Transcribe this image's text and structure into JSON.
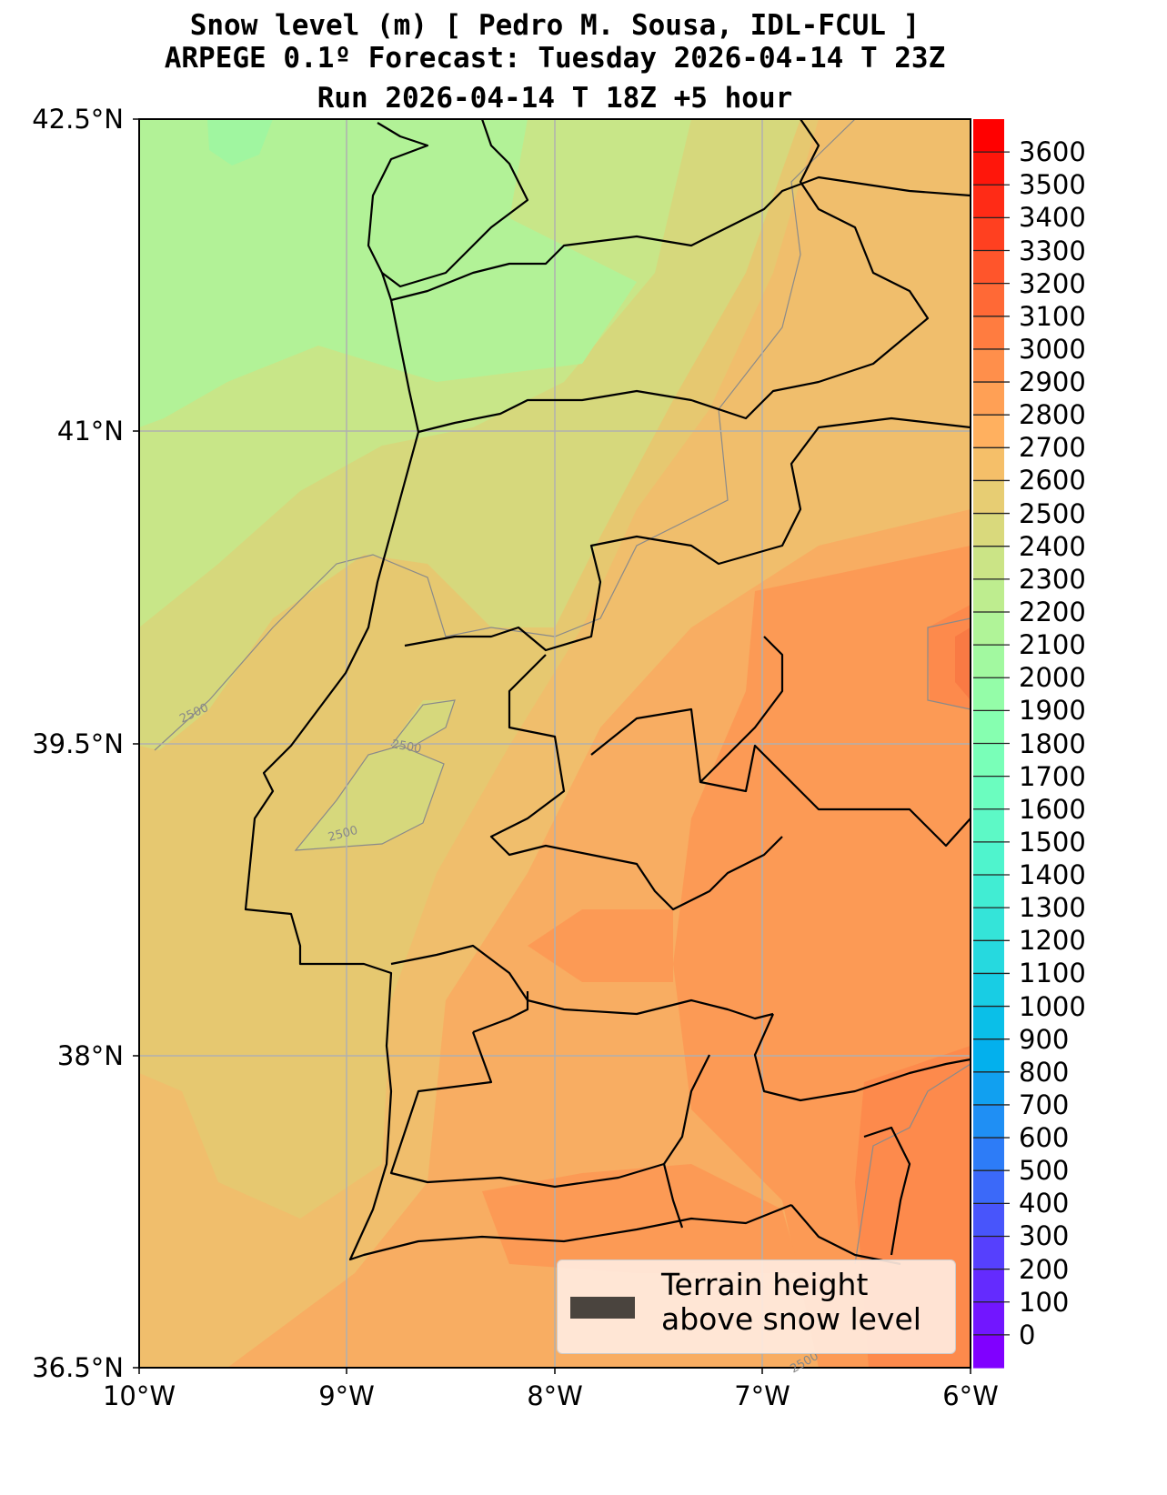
{
  "title": {
    "line1": "Snow level (m) [ Pedro M. Sousa, IDL-FCUL ]",
    "line2": "ARPEGE 0.1º Forecast: Tuesday 2026-04-14 T 23Z",
    "line3": "Run 2026-04-14 T 18Z +5 hour"
  },
  "axes": {
    "lat_labels": [
      "42.5°N",
      "41°N",
      "39.5°N",
      "38°N",
      "36.5°N"
    ],
    "lon_labels": [
      "10°W",
      "9°W",
      "8°W",
      "7°W",
      "6°W"
    ]
  },
  "contour_labels": [
    "2500",
    "2500",
    "2500",
    "2500"
  ],
  "legend": {
    "line1": "Terrain height",
    "line2": "above snow level",
    "swatch_color": "#4a443e"
  },
  "colorbar": {
    "min": -100,
    "max": 3700,
    "step": 100,
    "colormap": "rainbow",
    "tick_labels": [
      "0",
      "100",
      "200",
      "300",
      "400",
      "500",
      "600",
      "700",
      "800",
      "900",
      "1000",
      "1100",
      "1200",
      "1300",
      "1400",
      "1500",
      "1600",
      "1700",
      "1800",
      "1900",
      "2000",
      "2100",
      "2200",
      "2300",
      "2400",
      "2500",
      "2600",
      "2700",
      "2800",
      "2900",
      "3000",
      "3100",
      "3200",
      "3300",
      "3400",
      "3500",
      "3600"
    ]
  }
}
